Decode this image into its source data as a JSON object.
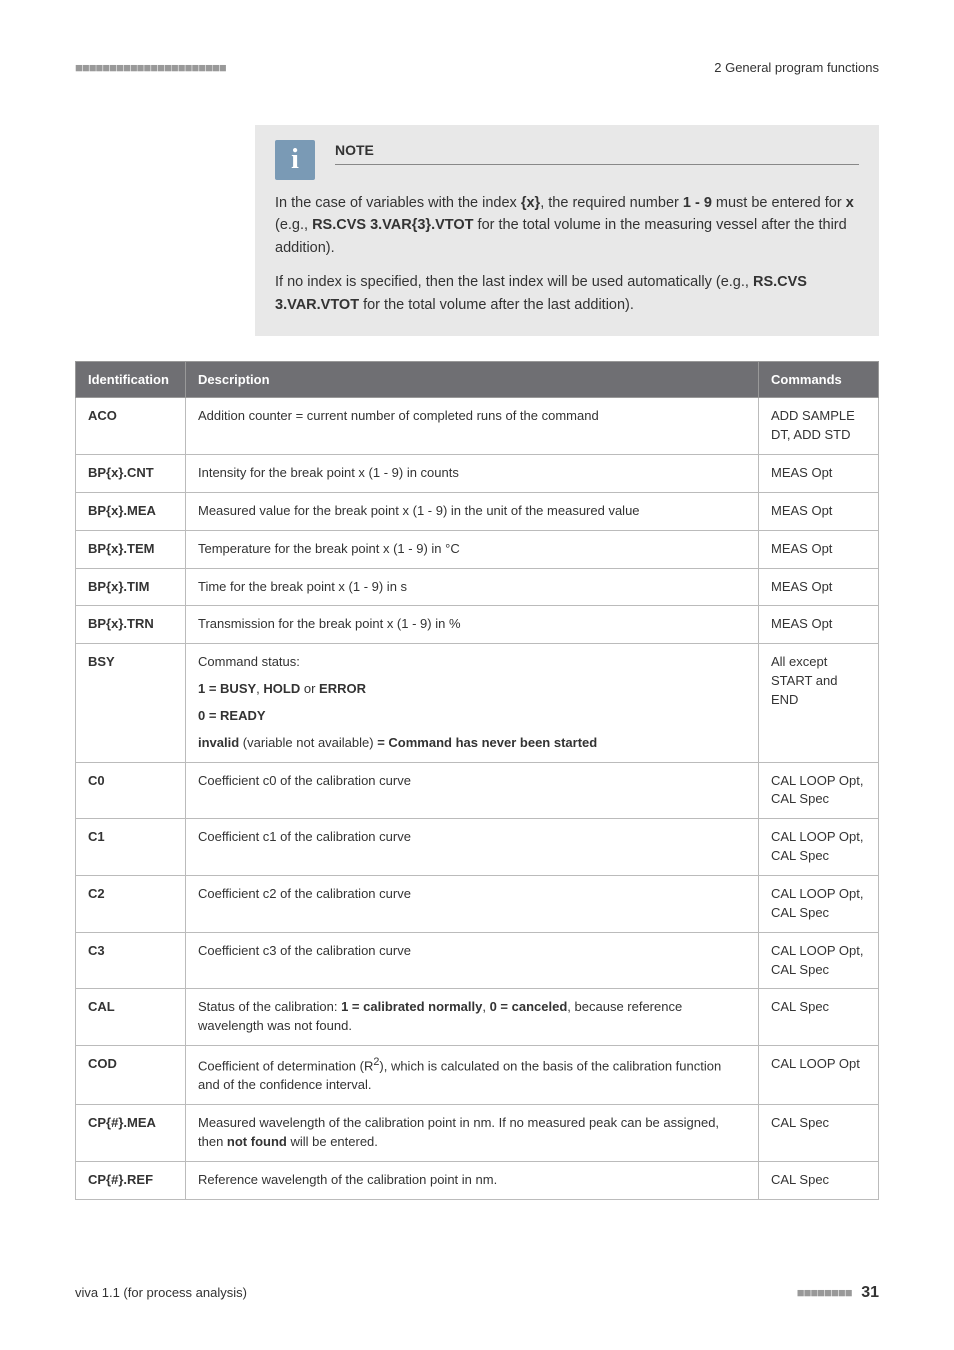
{
  "header": {
    "left_dashes": "■■■■■■■■■■■■■■■■■■■■■■",
    "right_text": "2 General program functions"
  },
  "note": {
    "title": "NOTE",
    "para1_pre": "In the case of variables with the index ",
    "para1_idx": "{x}",
    "para1_mid": ", the required number ",
    "para1_num": "1 - 9",
    "para1_after_num": " must be entered for ",
    "para1_x": "x",
    "para1_eg": " (e.g., ",
    "para1_code": "RS.CVS 3.VAR{3}.VTOT",
    "para1_close": " for the total volume in the measuring vessel after the third addition).",
    "para2_pre": "If no index is specified, then the last index will be used automatically (e.g., ",
    "para2_code": "RS.CVS 3.VAR.VTOT",
    "para2_close": " for the total volume after the last addition)."
  },
  "table": {
    "headers": {
      "id": "Identification",
      "desc": "Description",
      "cmd": "Commands"
    },
    "rows": {
      "aco": {
        "id": "ACO",
        "desc": "Addition counter = current number of completed runs of the command",
        "cmd": "ADD SAMPLE DT, ADD STD"
      },
      "bpcnt": {
        "id": "BP{x}.CNT",
        "desc": "Intensity for the break point x (1 - 9) in counts",
        "cmd": "MEAS Opt"
      },
      "bpmea": {
        "id": "BP{x}.MEA",
        "desc": "Measured value for the break point x (1 - 9) in the unit of the measured value",
        "cmd": "MEAS Opt"
      },
      "bptem": {
        "id": "BP{x}.TEM",
        "desc": "Temperature for the break point x (1 - 9) in °C",
        "cmd": "MEAS Opt"
      },
      "bptim": {
        "id": "BP{x}.TIM",
        "desc": "Time for the break point x (1 - 9) in s",
        "cmd": "MEAS Opt"
      },
      "bptrn": {
        "id": "BP{x}.TRN",
        "desc": "Transmission for the break point x (1 - 9) in %",
        "cmd": "MEAS Opt"
      },
      "bsy": {
        "id": "BSY",
        "l1": "Command status:",
        "l2a": "1 = BUSY",
        "l2b": ", ",
        "l2c": "HOLD",
        "l2d": " or ",
        "l2e": "ERROR",
        "l3": "0 = READY",
        "l4a": "invalid",
        "l4b": " (variable not available) ",
        "l4c": "= Command has never been started",
        "cmd": "All except START and END"
      },
      "c0": {
        "id": "C0",
        "desc": "Coefficient c0 of the calibration curve",
        "cmd": "CAL LOOP Opt, CAL Spec"
      },
      "c1": {
        "id": "C1",
        "desc": "Coefficient c1 of the calibration curve",
        "cmd": "CAL LOOP Opt, CAL Spec"
      },
      "c2": {
        "id": "C2",
        "desc": "Coefficient c2 of the calibration curve",
        "cmd": "CAL LOOP Opt, CAL Spec"
      },
      "c3": {
        "id": "C3",
        "desc": "Coefficient c3 of the calibration curve",
        "cmd": "CAL LOOP Opt, CAL Spec"
      },
      "cal": {
        "id": "CAL",
        "pre": "Status of the calibration: ",
        "a": "1 = calibrated normally",
        "sep": ", ",
        "b": "0 = canceled",
        "post": ", because reference wavelength was not found.",
        "cmd": "CAL Spec"
      },
      "cod": {
        "id": "COD",
        "pre": "Coefficient of determination (R",
        "sup": "2",
        "post": "), which is calculated on the basis of the calibration function and of the confidence interval.",
        "cmd": "CAL LOOP Opt"
      },
      "cpmea": {
        "id": "CP{#}.MEA",
        "pre": "Measured wavelength of the calibration point in nm. If no measured peak can be assigned, then ",
        "bold": "not found",
        "post": " will be entered.",
        "cmd": "CAL Spec"
      },
      "cpref": {
        "id": "CP{#}.REF",
        "desc": "Reference wavelength of the calibration point in nm.",
        "cmd": "CAL Spec"
      }
    }
  },
  "footer": {
    "left": "viva 1.1 (for process analysis)",
    "right_dashes": "■■■■■■■■",
    "page": "31"
  }
}
